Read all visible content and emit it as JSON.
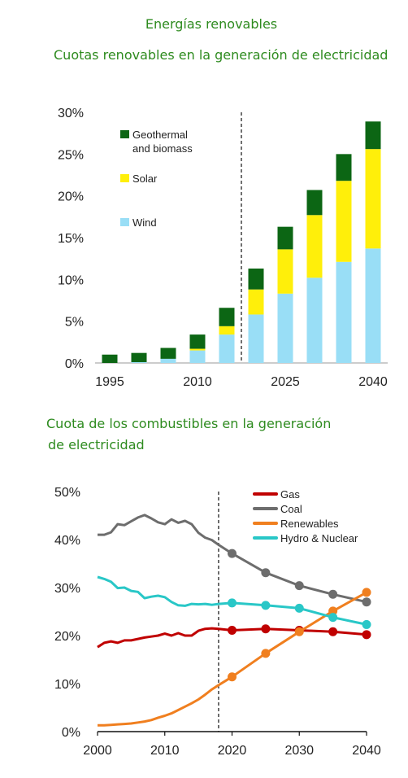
{
  "page_title": "Energías renovables",
  "colors": {
    "title_green": "#2e8b1f",
    "geothermal": "#0c6614",
    "solar": "#ffef0a",
    "wind": "#99def6",
    "gas": "#c00000",
    "coal": "#6d6d6d",
    "renewables": "#f07f1f",
    "hydro_nuclear": "#29c7c7"
  },
  "chart_data": [
    {
      "type": "bar",
      "stacked": true,
      "title": "Cuotas renovables en la generación de electricidad",
      "categories": [
        "1995",
        "2000",
        "2005",
        "2010",
        "2015",
        "2020",
        "2025",
        "2030",
        "2035",
        "2040"
      ],
      "x_tick_labels": [
        "1995",
        "2010",
        "2025",
        "2040"
      ],
      "y_tick_labels": [
        "0%",
        "5%",
        "10%",
        "15%",
        "20%",
        "25%",
        "30%"
      ],
      "ylim": [
        0,
        30
      ],
      "projection_divider_after_index": 4,
      "legend": [
        "Geothermal and biomass",
        "Solar",
        "Wind"
      ],
      "legend_placement": "top-left",
      "series": [
        {
          "name": "Wind",
          "values": [
            0.0,
            0.1,
            0.5,
            1.5,
            3.4,
            5.8,
            8.3,
            10.2,
            12.1,
            13.7
          ]
        },
        {
          "name": "Solar",
          "values": [
            0.0,
            0.0,
            0.0,
            0.2,
            1.0,
            3.0,
            5.3,
            7.5,
            9.7,
            11.9
          ]
        },
        {
          "name": "Geothermal and biomass",
          "values": [
            1.0,
            1.1,
            1.3,
            1.7,
            2.2,
            2.5,
            2.7,
            3.0,
            3.2,
            3.3
          ]
        }
      ]
    },
    {
      "type": "line",
      "title": "Cuota de los combustibles en la generación de electricidad",
      "title_lines": [
        "Cuota de los combustibles en la generación",
        "de electricidad"
      ],
      "x_tick_labels": [
        "2000",
        "2010",
        "2020",
        "2030",
        "2040"
      ],
      "y_tick_labels": [
        "0%",
        "10%",
        "20%",
        "30%",
        "40%",
        "50%"
      ],
      "xlim": [
        2000,
        2040
      ],
      "ylim": [
        0,
        50
      ],
      "projection_divider_x": 2018,
      "legend_placement": "top-right",
      "series": [
        {
          "name": "Gas",
          "x": [
            2000,
            2001,
            2002,
            2003,
            2004,
            2005,
            2006,
            2007,
            2008,
            2009,
            2010,
            2011,
            2012,
            2013,
            2014,
            2015,
            2016,
            2017,
            2018
          ],
          "values": [
            17.6,
            18.5,
            18.8,
            18.5,
            19.0,
            19.0,
            19.3,
            19.6,
            19.8,
            20.0,
            20.4,
            20.0,
            20.5,
            20.0,
            20.0,
            21.0,
            21.4,
            21.5,
            21.4
          ],
          "projection_x": [
            2018,
            2020,
            2025,
            2030,
            2035,
            2040
          ],
          "projection_values": [
            21.4,
            21.1,
            21.4,
            21.1,
            20.8,
            20.2
          ]
        },
        {
          "name": "Coal",
          "x": [
            2000,
            2001,
            2002,
            2003,
            2004,
            2005,
            2006,
            2007,
            2008,
            2009,
            2010,
            2011,
            2012,
            2013,
            2014,
            2015,
            2016,
            2017,
            2018
          ],
          "values": [
            41.0,
            41.0,
            41.5,
            43.2,
            43.0,
            43.8,
            44.6,
            45.1,
            44.4,
            43.6,
            43.2,
            44.2,
            43.5,
            43.9,
            43.2,
            41.4,
            40.4,
            39.9,
            38.9
          ],
          "projection_x": [
            2018,
            2020,
            2025,
            2030,
            2035,
            2040
          ],
          "projection_values": [
            38.9,
            37.1,
            33.1,
            30.4,
            28.6,
            27.0
          ]
        },
        {
          "name": "Renewables",
          "x": [
            2000,
            2001,
            2002,
            2003,
            2004,
            2005,
            2006,
            2007,
            2008,
            2009,
            2010,
            2011,
            2012,
            2013,
            2014,
            2015,
            2016,
            2017,
            2018
          ],
          "values": [
            1.3,
            1.3,
            1.4,
            1.5,
            1.6,
            1.7,
            1.9,
            2.1,
            2.4,
            2.9,
            3.3,
            3.8,
            4.5,
            5.2,
            5.9,
            6.7,
            7.7,
            8.8,
            9.7
          ],
          "projection_x": [
            2018,
            2020,
            2025,
            2030,
            2035,
            2040
          ],
          "projection_values": [
            9.7,
            11.4,
            16.3,
            20.8,
            25.1,
            29.0
          ]
        },
        {
          "name": "Hydro & Nuclear",
          "x": [
            2000,
            2001,
            2002,
            2003,
            2004,
            2005,
            2006,
            2007,
            2008,
            2009,
            2010,
            2011,
            2012,
            2013,
            2014,
            2015,
            2016,
            2017,
            2018
          ],
          "values": [
            32.2,
            31.8,
            31.2,
            29.9,
            30.0,
            29.3,
            29.1,
            27.8,
            28.1,
            28.3,
            28.0,
            27.0,
            26.3,
            26.2,
            26.6,
            26.5,
            26.6,
            26.4,
            26.6
          ],
          "projection_x": [
            2018,
            2020,
            2025,
            2030,
            2035,
            2040
          ],
          "projection_values": [
            26.6,
            26.8,
            26.3,
            25.7,
            23.8,
            22.3
          ]
        }
      ]
    }
  ]
}
